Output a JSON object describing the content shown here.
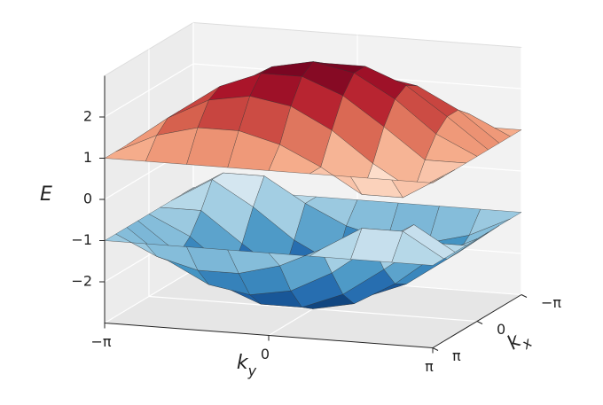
{
  "chart_data": {
    "type": "surface",
    "zlabel": "E",
    "ylabel": {
      "text": "k",
      "sub": "y"
    },
    "xlabel": {
      "text": "k",
      "sub": "x"
    },
    "x": [
      -3.1416,
      -2.3562,
      -1.5708,
      -0.7854,
      0,
      0.7854,
      1.5708,
      2.3562,
      3.1416
    ],
    "y": [
      -3.1416,
      -2.3562,
      -1.5708,
      -0.7854,
      0,
      0.7854,
      1.5708,
      2.3562,
      3.1416
    ],
    "series": [
      {
        "values": [
          [
            1,
            1,
            1,
            1,
            1,
            1,
            1,
            1,
            1
          ],
          [
            1,
            0.41,
            0.41,
            1,
            1.47,
            1.73,
            1.73,
            1.47,
            1
          ],
          [
            1,
            0.41,
            1,
            1.73,
            2.24,
            2.41,
            2.24,
            1.73,
            1
          ],
          [
            1,
            1,
            1.73,
            2.41,
            2.8,
            2.8,
            2.41,
            1.73,
            1
          ],
          [
            1,
            1.47,
            2.24,
            2.8,
            3,
            2.8,
            2.24,
            1.47,
            1
          ],
          [
            1,
            1.73,
            2.41,
            2.8,
            2.8,
            2.41,
            1.73,
            1,
            1
          ],
          [
            1,
            1.73,
            2.24,
            2.41,
            2.24,
            1.73,
            1,
            0.41,
            1
          ],
          [
            1,
            1.47,
            1.73,
            1.73,
            1.47,
            1,
            0.41,
            0.41,
            1
          ],
          [
            1,
            1,
            1,
            1,
            1,
            1,
            1,
            1,
            1
          ]
        ]
      },
      {
        "values": [
          [
            -1,
            -1,
            -1,
            -1,
            -1,
            -1,
            -1,
            -1,
            -1
          ],
          [
            -1,
            -0.41,
            -0.41,
            -1,
            -1.47,
            -1.73,
            -1.73,
            -1.47,
            -1
          ],
          [
            -1,
            -0.41,
            -1,
            -1.73,
            -2.24,
            -2.41,
            -2.24,
            -1.73,
            -1
          ],
          [
            -1,
            -1,
            -1.73,
            -2.41,
            -2.8,
            -2.8,
            -2.41,
            -1.73,
            -1
          ],
          [
            -1,
            -1.47,
            -2.24,
            -2.8,
            -3,
            -2.8,
            -2.24,
            -1.47,
            -1
          ],
          [
            -1,
            -1.73,
            -2.41,
            -2.8,
            -2.8,
            -2.41,
            -1.73,
            -1,
            -1
          ],
          [
            -1,
            -1.73,
            -2.24,
            -2.41,
            -2.24,
            -1.73,
            -1,
            -0.41,
            -1
          ],
          [
            -1,
            -1.47,
            -1.73,
            -1.73,
            -1.47,
            -1,
            -0.41,
            -0.41,
            -1
          ],
          [
            -1,
            -1,
            -1,
            -1,
            -1,
            -1,
            -1,
            -1,
            -1
          ]
        ]
      }
    ],
    "xlim": [
      -3.1416,
      3.1416
    ],
    "ylim": [
      -3.1416,
      3.1416
    ],
    "zlim": [
      -3,
      3
    ],
    "xticks": [
      {
        "value": -3.1416,
        "label": "−π"
      },
      0,
      {
        "value": 3.1416,
        "label": "π"
      }
    ],
    "yticks": [
      {
        "value": -3.1416,
        "label": "−π"
      },
      0,
      {
        "value": 3.1416,
        "label": "π"
      }
    ],
    "zticks": [
      {
        "value": -2,
        "label": "−2"
      },
      {
        "value": -1,
        "label": "−1"
      },
      0,
      1,
      2
    ],
    "grid": true,
    "colormap": [
      "#053061",
      "#2166ac",
      "#4393c3",
      "#92c5de",
      "#d1e5f0",
      "#f7f7f7",
      "#fddbc7",
      "#f4a582",
      "#d6604d",
      "#b2182b",
      "#67001f"
    ]
  }
}
